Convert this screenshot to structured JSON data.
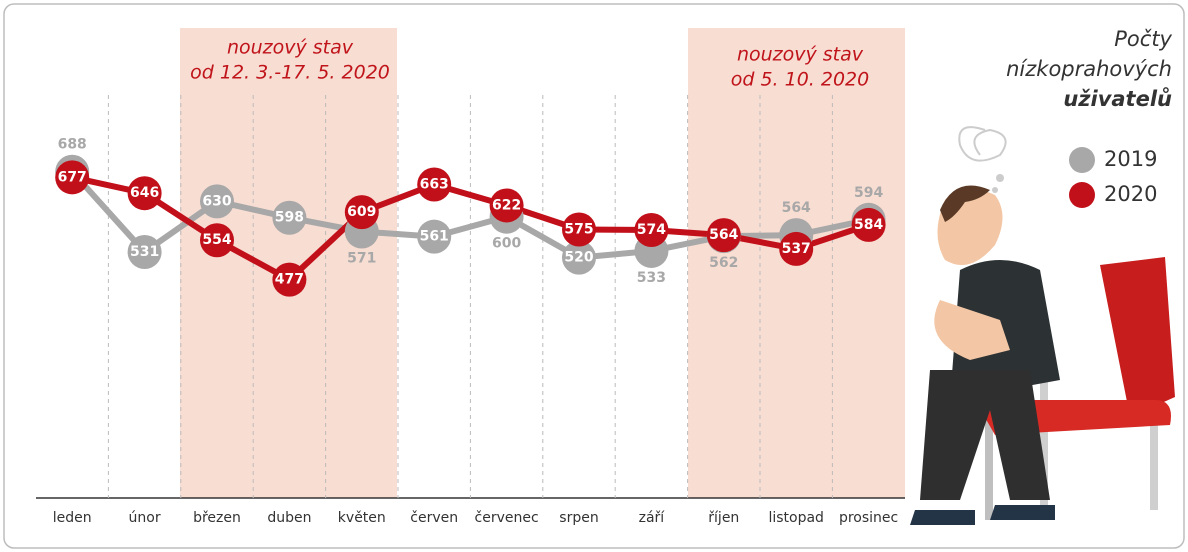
{
  "chart_data": {
    "type": "line",
    "title": [
      "Počty",
      "nízkoprahových",
      "uživatelů"
    ],
    "annotations": [
      "nouzový stav",
      "od 12. 3.-17. 5. 2020",
      "nouzový stav",
      "od 5. 10. 2020"
    ],
    "categories": [
      "leden",
      "únor",
      "březen",
      "duben",
      "květen",
      "červen",
      "červenec",
      "srpen",
      "září",
      "říjen",
      "listopad",
      "prosinec"
    ],
    "series": [
      {
        "name": "2019",
        "color": "#a8a8a8",
        "values": [
          688,
          531,
          630,
          598,
          571,
          561,
          600,
          520,
          533,
          562,
          564,
          594
        ]
      },
      {
        "name": "2020",
        "color": "#c2101a",
        "values": [
          677,
          646,
          554,
          477,
          609,
          663,
          622,
          575,
          574,
          564,
          537,
          584
        ]
      }
    ],
    "ylim": [
      400,
      750
    ]
  }
}
